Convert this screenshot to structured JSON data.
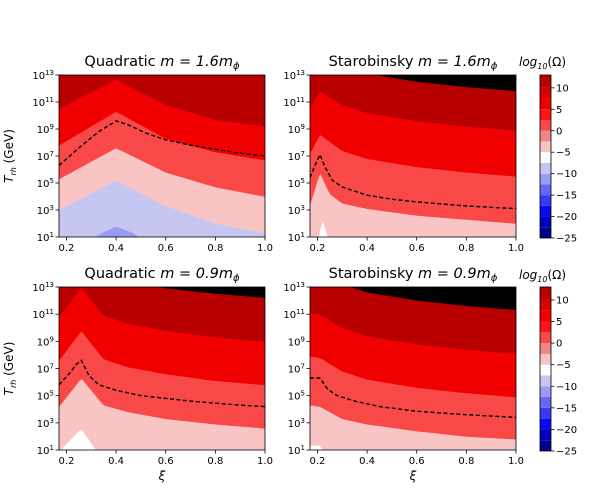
{
  "chart_data": [
    {
      "type": "heatmap",
      "title_text": "Quadratic ",
      "title_math": "m = 1.6m",
      "title_sub": "ϕ",
      "xlabel": "",
      "ylabel": "T",
      "ylabel_sub": "rh",
      "ylabel_unit": " (GeV)",
      "xlim": [
        0.17,
        1.0
      ],
      "ylim_log10": [
        1,
        13
      ],
      "xticks": [
        "0.2",
        "0.4",
        "0.6",
        "0.8",
        "1.0"
      ],
      "yticks_base": "10",
      "yticks_exp": [
        "1",
        "3",
        "5",
        "7",
        "9",
        "11",
        "13"
      ],
      "level_offset": 19,
      "boundaries": [
        {
          "level": -10,
          "x": [
            0.17,
            0.33,
            0.4,
            0.47,
            0.55
          ],
          "y": [
            -2,
            1.2,
            1.8,
            1.3,
            0.2
          ]
        },
        {
          "level": -5,
          "x": [
            0.17,
            0.4,
            0.6,
            0.8,
            1.0
          ],
          "y": [
            3.0,
            5.2,
            3.3,
            2.0,
            1.3
          ]
        },
        {
          "level": 0,
          "x": [
            0.17,
            0.4,
            0.6,
            0.8,
            1.0
          ],
          "y": [
            5.3,
            7.6,
            5.8,
            4.7,
            4.0
          ]
        },
        {
          "level": 5,
          "x": [
            0.17,
            0.4,
            0.6,
            0.8,
            1.0
          ],
          "y": [
            7.8,
            10.3,
            8.3,
            7.3,
            6.7
          ]
        },
        {
          "level": 10,
          "x": [
            0.17,
            0.4,
            0.6,
            0.8,
            1.0
          ],
          "y": [
            10.5,
            12.7,
            10.8,
            9.7,
            9.2
          ]
        }
      ],
      "dashed_x": [
        0.17,
        0.25,
        0.33,
        0.4,
        0.45,
        0.52,
        0.6,
        0.7,
        0.8,
        0.9,
        1.0
      ],
      "dashed_y": [
        6.3,
        7.6,
        8.8,
        9.6,
        9.3,
        8.7,
        8.2,
        7.8,
        7.5,
        7.2,
        7.0
      ]
    },
    {
      "type": "heatmap",
      "title_text": "Starobinsky ",
      "title_math": "m = 1.6m",
      "title_sub": "ϕ",
      "xlabel": "",
      "ylabel": "",
      "xlim": [
        0.17,
        1.0
      ],
      "ylim_log10": [
        1,
        13
      ],
      "xticks": [
        "0.2",
        "0.4",
        "0.6",
        "0.8",
        "1.0"
      ],
      "yticks_base": "10",
      "yticks_exp": [
        "1",
        "3",
        "5",
        "7",
        "9",
        "11",
        "13"
      ],
      "level_offset": 19,
      "boundaries": [
        {
          "level": -5,
          "x": [
            0.17,
            0.2,
            0.22,
            0.25,
            0.3
          ],
          "y": [
            -2,
            0.5,
            2.4,
            0.5,
            -2
          ]
        },
        {
          "level": 0,
          "x": [
            0.17,
            0.21,
            0.25,
            0.3,
            0.4,
            0.6,
            0.8,
            1.0
          ],
          "y": [
            3.4,
            5.8,
            4.2,
            3.5,
            3.1,
            2.6,
            2.3,
            2.0
          ]
        },
        {
          "level": 5,
          "x": [
            0.17,
            0.21,
            0.3,
            0.4,
            0.6,
            0.8,
            1.0
          ],
          "y": [
            7.2,
            8.6,
            7.4,
            6.8,
            6.2,
            5.8,
            5.5
          ]
        },
        {
          "level": 10,
          "x": [
            0.17,
            0.21,
            0.3,
            0.4,
            0.6,
            0.8,
            1.0
          ],
          "y": [
            10.6,
            11.8,
            10.8,
            10.2,
            9.6,
            9.2,
            8.9
          ]
        },
        {
          "level": 15,
          "x": [
            0.17,
            0.23,
            0.3,
            0.4,
            0.6,
            0.8,
            1.0
          ],
          "y": [
            14.0,
            14.2,
            13.6,
            13.1,
            12.5,
            12.1,
            11.8
          ]
        }
      ],
      "dashed_x": [
        0.17,
        0.19,
        0.21,
        0.23,
        0.26,
        0.3,
        0.4,
        0.5,
        0.6,
        0.7,
        0.8,
        0.9,
        1.0
      ],
      "dashed_y": [
        5.4,
        6.3,
        7.1,
        6.2,
        5.2,
        4.7,
        4.1,
        3.8,
        3.6,
        3.45,
        3.3,
        3.2,
        3.1
      ]
    },
    {
      "type": "heatmap",
      "title_text": "Quadratic ",
      "title_math": "m = 0.9m",
      "title_sub": "ϕ",
      "xlabel": "ξ",
      "ylabel": "T",
      "ylabel_sub": "rh",
      "ylabel_unit": " (GeV)",
      "xlim": [
        0.17,
        1.0
      ],
      "ylim_log10": [
        1,
        13
      ],
      "xticks": [
        "0.2",
        "0.4",
        "0.6",
        "0.8",
        "1.0"
      ],
      "yticks_base": "10",
      "yticks_exp": [
        "1",
        "3",
        "5",
        "7",
        "9",
        "11",
        "13"
      ],
      "level_offset": 19,
      "boundaries": [
        {
          "level": -5,
          "x": [
            0.17,
            0.26,
            0.32,
            0.4
          ],
          "y": [
            0.9,
            2.6,
            1.0,
            -1.0
          ]
        },
        {
          "level": 0,
          "x": [
            0.17,
            0.26,
            0.35,
            0.45,
            0.6,
            0.8,
            1.0
          ],
          "y": [
            4.2,
            6.3,
            4.3,
            3.8,
            3.3,
            2.9,
            2.6
          ]
        },
        {
          "level": 5,
          "x": [
            0.17,
            0.26,
            0.35,
            0.45,
            0.6,
            0.8,
            1.0
          ],
          "y": [
            7.6,
            9.8,
            7.7,
            7.1,
            6.6,
            6.1,
            5.8
          ]
        },
        {
          "level": 10,
          "x": [
            0.17,
            0.26,
            0.35,
            0.45,
            0.6,
            0.8,
            1.0
          ],
          "y": [
            10.8,
            13.0,
            10.9,
            10.3,
            9.8,
            9.3,
            9.0
          ]
        },
        {
          "level": 15,
          "x": [
            0.17,
            0.26,
            0.35,
            0.45,
            0.6,
            0.8,
            1.0
          ],
          "y": [
            14.0,
            15.5,
            14.0,
            13.4,
            12.9,
            12.5,
            12.2
          ]
        }
      ],
      "dashed_x": [
        0.17,
        0.21,
        0.24,
        0.26,
        0.29,
        0.33,
        0.4,
        0.5,
        0.6,
        0.7,
        0.8,
        0.9,
        1.0
      ],
      "dashed_y": [
        5.8,
        6.6,
        7.3,
        7.6,
        6.5,
        5.8,
        5.4,
        5.0,
        4.8,
        4.6,
        4.45,
        4.3,
        4.2
      ]
    },
    {
      "type": "heatmap",
      "title_text": "Starobinsky ",
      "title_math": "m = 0.9m",
      "title_sub": "ϕ",
      "xlabel": "ξ",
      "ylabel": "",
      "xlim": [
        0.17,
        1.0
      ],
      "ylim_log10": [
        1,
        13
      ],
      "xticks": [
        "0.2",
        "0.4",
        "0.6",
        "0.8",
        "1.0"
      ],
      "yticks_base": "10",
      "yticks_exp": [
        "1",
        "3",
        "5",
        "7",
        "9",
        "11",
        "13"
      ],
      "level_offset": 19,
      "boundaries": [
        {
          "level": -5,
          "x": [
            0.17,
            0.18,
            0.21,
            0.22
          ],
          "y": [
            1.3,
            1.35,
            1.35,
            1.0
          ]
        },
        {
          "level": 0,
          "x": [
            0.17,
            0.21,
            0.26,
            0.3,
            0.4,
            0.6,
            0.8,
            1.0
          ],
          "y": [
            4.3,
            4.2,
            3.7,
            3.3,
            2.9,
            2.4,
            2.0,
            1.8
          ]
        },
        {
          "level": 5,
          "x": [
            0.17,
            0.21,
            0.3,
            0.4,
            0.6,
            0.8,
            1.0
          ],
          "y": [
            7.9,
            7.8,
            6.8,
            6.2,
            5.6,
            5.2,
            4.9
          ]
        },
        {
          "level": 10,
          "x": [
            0.17,
            0.21,
            0.3,
            0.4,
            0.6,
            0.8,
            1.0
          ],
          "y": [
            11.1,
            11.0,
            10.0,
            9.4,
            8.8,
            8.4,
            8.1
          ]
        },
        {
          "level": 15,
          "x": [
            0.17,
            0.21,
            0.3,
            0.4,
            0.6,
            0.8,
            1.0
          ],
          "y": [
            14.3,
            14.2,
            13.2,
            12.6,
            12.0,
            11.6,
            11.3
          ]
        }
      ],
      "dashed_x": [
        0.17,
        0.21,
        0.24,
        0.28,
        0.35,
        0.45,
        0.6,
        0.8,
        1.0
      ],
      "dashed_y": [
        6.3,
        6.3,
        5.5,
        5.0,
        4.6,
        4.2,
        3.85,
        3.6,
        3.4
      ]
    }
  ],
  "colorbar": {
    "label_prefix": "log",
    "label_sub": "10",
    "label_suffix": "(Ω)",
    "min": -25,
    "max": 13,
    "bounds": [
      -25,
      -22.5,
      -20,
      -17.5,
      -15,
      -12.5,
      -10,
      -7.5,
      -5,
      -2.5,
      0,
      2.5,
      5,
      7.5,
      10,
      13
    ],
    "colors": [
      "#00008d",
      "#0000c0",
      "#0b0bf1",
      "#3939f4",
      "#6666f7",
      "#9b9bf0",
      "#c6c6f3",
      "#ffffff",
      "#f9c4c4",
      "#f08585",
      "#f84848",
      "#ff1515",
      "#f00000",
      "#d80000",
      "#b80000"
    ],
    "ticks": [
      "10",
      "5",
      "0",
      "−5",
      "−10",
      "−15",
      "−20",
      "−25"
    ],
    "tick_values": [
      10,
      5,
      0,
      -5,
      -10,
      -15,
      -20,
      -25
    ]
  },
  "colors": {
    "dashed_line": "#000000",
    "axes": "#000000"
  }
}
